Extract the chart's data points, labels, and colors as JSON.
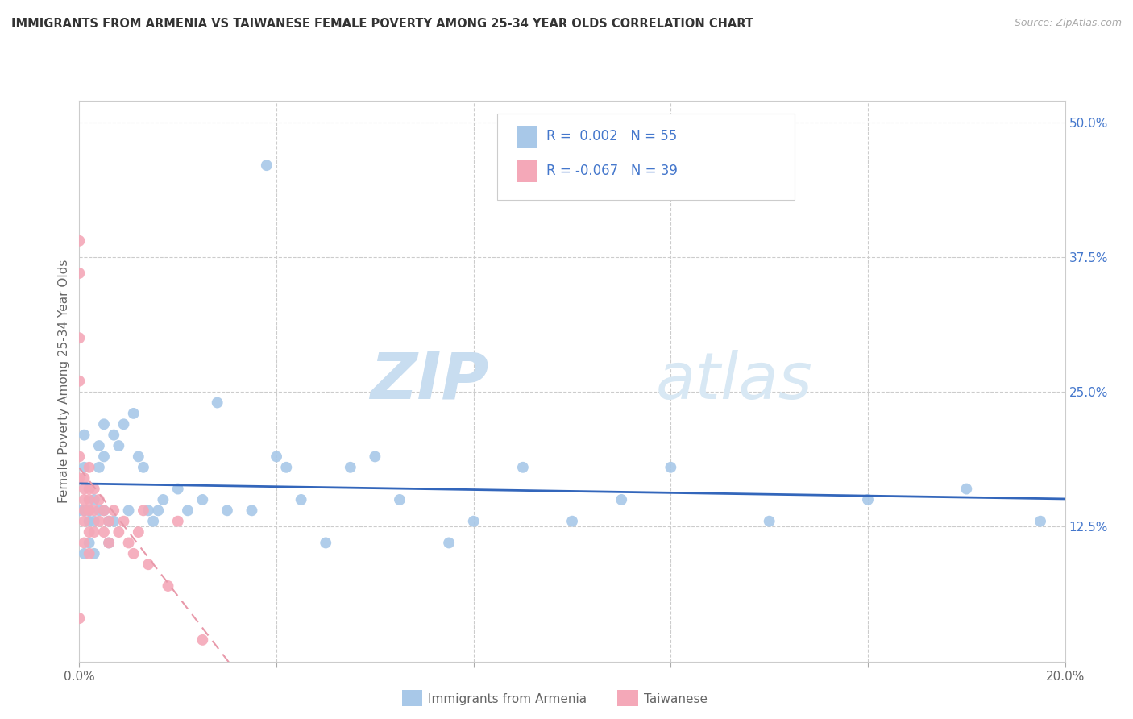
{
  "title": "IMMIGRANTS FROM ARMENIA VS TAIWANESE FEMALE POVERTY AMONG 25-34 YEAR OLDS CORRELATION CHART",
  "source": "Source: ZipAtlas.com",
  "ylabel": "Female Poverty Among 25-34 Year Olds",
  "xlim": [
    0.0,
    0.2
  ],
  "ylim": [
    0.0,
    0.52
  ],
  "yticks_right": [
    0.0,
    0.125,
    0.25,
    0.375,
    0.5
  ],
  "yticklabels_right": [
    "",
    "12.5%",
    "25.0%",
    "37.5%",
    "50.0%"
  ],
  "watermark_zip": "ZIP",
  "watermark_atlas": "atlas",
  "color_armenia": "#a8c8e8",
  "color_taiwanese": "#f4a8b8",
  "trendline_armenia_color": "#3366bb",
  "trendline_taiwanese_color": "#e899aa",
  "grid_color": "#cccccc",
  "armenia_x": [
    0.0,
    0.001,
    0.001,
    0.001,
    0.001,
    0.002,
    0.002,
    0.002,
    0.003,
    0.003,
    0.003,
    0.004,
    0.004,
    0.004,
    0.005,
    0.005,
    0.005,
    0.006,
    0.006,
    0.007,
    0.007,
    0.008,
    0.009,
    0.01,
    0.011,
    0.012,
    0.013,
    0.014,
    0.015,
    0.016,
    0.017,
    0.02,
    0.022,
    0.025,
    0.028,
    0.03,
    0.035,
    0.038,
    0.04,
    0.042,
    0.045,
    0.05,
    0.055,
    0.06,
    0.065,
    0.075,
    0.08,
    0.09,
    0.1,
    0.11,
    0.12,
    0.14,
    0.16,
    0.18,
    0.195
  ],
  "armenia_y": [
    0.14,
    0.21,
    0.18,
    0.14,
    0.1,
    0.14,
    0.13,
    0.11,
    0.15,
    0.13,
    0.1,
    0.2,
    0.18,
    0.14,
    0.22,
    0.19,
    0.14,
    0.13,
    0.11,
    0.21,
    0.13,
    0.2,
    0.22,
    0.14,
    0.23,
    0.19,
    0.18,
    0.14,
    0.13,
    0.14,
    0.15,
    0.16,
    0.14,
    0.15,
    0.24,
    0.14,
    0.14,
    0.46,
    0.19,
    0.18,
    0.15,
    0.11,
    0.18,
    0.19,
    0.15,
    0.11,
    0.13,
    0.18,
    0.13,
    0.15,
    0.18,
    0.13,
    0.15,
    0.16,
    0.13
  ],
  "taiwanese_x": [
    0.0,
    0.0,
    0.0,
    0.0,
    0.0,
    0.0,
    0.0,
    0.001,
    0.001,
    0.001,
    0.001,
    0.001,
    0.001,
    0.002,
    0.002,
    0.002,
    0.002,
    0.002,
    0.002,
    0.003,
    0.003,
    0.003,
    0.004,
    0.004,
    0.005,
    0.005,
    0.006,
    0.006,
    0.007,
    0.008,
    0.009,
    0.01,
    0.011,
    0.012,
    0.013,
    0.014,
    0.018,
    0.02,
    0.025
  ],
  "taiwanese_y": [
    0.39,
    0.36,
    0.3,
    0.26,
    0.19,
    0.17,
    0.04,
    0.17,
    0.16,
    0.15,
    0.14,
    0.13,
    0.11,
    0.18,
    0.16,
    0.15,
    0.14,
    0.12,
    0.1,
    0.16,
    0.14,
    0.12,
    0.15,
    0.13,
    0.14,
    0.12,
    0.13,
    0.11,
    0.14,
    0.12,
    0.13,
    0.11,
    0.1,
    0.12,
    0.14,
    0.09,
    0.07,
    0.13,
    0.02
  ]
}
